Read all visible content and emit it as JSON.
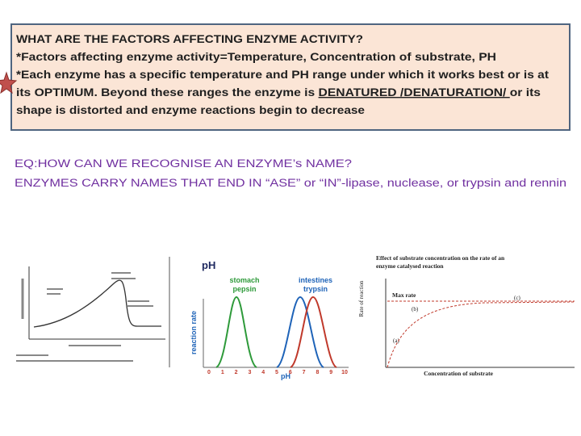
{
  "slide": {
    "box": {
      "lines": [
        "WHAT ARE THE FACTORS AFFECTING ENZYME ACTIVITY?",
        "*Factors affecting enzyme activity=Temperature, Concentration of substrate, PH",
        "*Each enzyme has a specific temperature and PH range under which it works best or is at",
        {
          "before": "its OPTIMUM. Beyond these ranges the enzyme is ",
          "underlined": "DENATURED /DENATURATION/ ",
          "after": "or its"
        },
        "shape is distorted and enzyme reactions begin to decrease"
      ]
    },
    "eq": {
      "lines": [
        "EQ:HOW CAN WE RECOGNISE AN ENZYME’s NAME?",
        "ENZYMES CARRY NAMES THAT END IN “ASE”  or “IN”-lipase, nuclease, or trypsin and rennin"
      ]
    },
    "ph_figure": {
      "title": "pH",
      "labels": [
        "stomach",
        "pepsin",
        "intestines",
        "trypsin"
      ],
      "y_label": "reaction rate",
      "x_label": "pH",
      "xticks": [
        0,
        1,
        2,
        3,
        4,
        5,
        6,
        7,
        8,
        9,
        10
      ]
    },
    "substrate_figure": {
      "title": [
        "Effect of substrate concentration on the rate of an",
        "enzyme catalysed  reaction"
      ],
      "y_label": "Rate of reaction",
      "x_label": "Concentration of substrate",
      "max_rate": "Max rate",
      "points": [
        "(a)",
        "(b)",
        "(c)"
      ]
    }
  }
}
